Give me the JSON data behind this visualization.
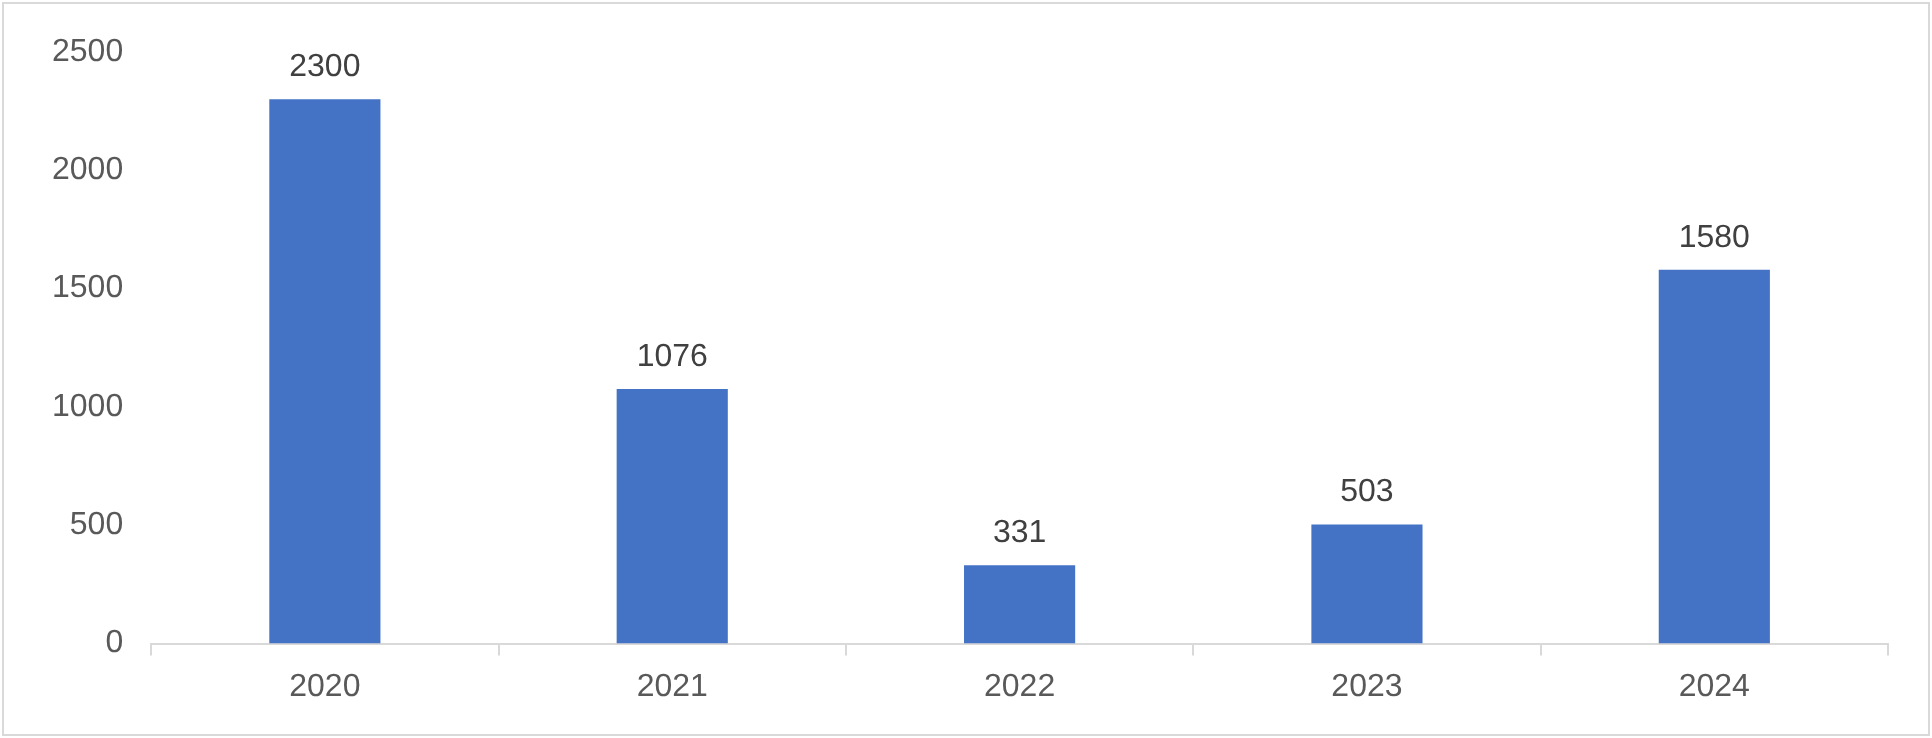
{
  "chart_data": {
    "type": "bar",
    "categories": [
      "2020",
      "2021",
      "2022",
      "2023",
      "2024"
    ],
    "values": [
      2300,
      1076,
      331,
      503,
      1580
    ],
    "color": "#4472c4",
    "ylim": [
      0,
      2500
    ],
    "yticks": [
      0,
      500,
      1000,
      1500,
      2000,
      2500
    ],
    "data_labels": true,
    "grid": false,
    "legend": false
  }
}
